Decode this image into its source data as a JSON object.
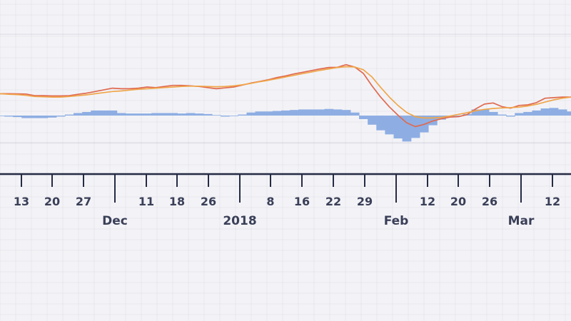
{
  "chart_data": {
    "type": "line",
    "x_labels": [
      "13",
      "20",
      "27",
      "Dec",
      "11",
      "18",
      "26",
      "2018",
      "8",
      "16",
      "22",
      "29",
      "Feb",
      "12",
      "20",
      "26",
      "Mar",
      "12"
    ],
    "colors": {
      "line1": "#e0694f",
      "line2": "#f0a64a",
      "histogram": "#8eaee3",
      "axis": "#252b45",
      "grid": "#c9c9d8",
      "background": "#f3f3f7"
    },
    "series": [
      {
        "values": [
          2.2,
          2.2,
          2.15,
          2.1,
          1.5,
          1.5,
          1.4,
          1.4,
          1.5,
          2.0,
          2.4,
          3.0,
          3.6,
          4.2,
          4.0,
          4.0,
          4.2,
          4.6,
          4.4,
          4.8,
          5.2,
          5.2,
          5.0,
          4.8,
          4.4,
          4.0,
          4.3,
          4.6,
          5.3,
          6.0,
          6.6,
          7.2,
          8.0,
          8.6,
          9.3,
          9.9,
          10.5,
          11.1,
          11.6,
          11.7,
          12.6,
          11.8,
          9.5,
          5.0,
          1.0,
          -2.5,
          -5.5,
          -8.2,
          -9.6,
          -8.8,
          -7.6,
          -6.8,
          -6.2,
          -6.0,
          -5.3,
          -3.2,
          -1.5,
          -1.1,
          -2.4,
          -3.0,
          -2.0,
          -1.8,
          -1.0,
          0.6,
          0.8,
          1.0,
          1.0
        ]
      },
      {
        "values": [
          2.2,
          2.0,
          1.9,
          1.6,
          1.2,
          1.1,
          1.0,
          1.0,
          1.2,
          1.5,
          1.8,
          2.2,
          2.6,
          3.0,
          3.2,
          3.5,
          3.8,
          4.0,
          4.2,
          4.4,
          4.6,
          4.8,
          4.9,
          4.9,
          4.8,
          4.7,
          4.8,
          5.0,
          5.4,
          5.9,
          6.5,
          7.0,
          7.6,
          8.2,
          8.8,
          9.4,
          10.0,
          10.6,
          11.1,
          11.6,
          11.9,
          11.8,
          10.8,
          8.2,
          4.5,
          1.0,
          -2.0,
          -4.5,
          -6.0,
          -6.5,
          -6.5,
          -6.3,
          -5.8,
          -5.2,
          -4.6,
          -3.9,
          -3.4,
          -3.1,
          -2.9,
          -2.8,
          -2.6,
          -2.2,
          -1.6,
          -0.8,
          0.0,
          0.6,
          1.0
        ]
      }
    ],
    "histogram": [
      0.0,
      -0.2,
      -0.3,
      -0.5,
      -0.5,
      -0.5,
      -0.4,
      -0.2,
      0.2,
      0.5,
      0.7,
      1.0,
      1.0,
      1.0,
      0.5,
      0.4,
      0.4,
      0.4,
      0.5,
      0.5,
      0.5,
      0.4,
      0.5,
      0.4,
      0.3,
      0.1,
      -0.2,
      -0.1,
      0.2,
      0.6,
      0.8,
      0.8,
      0.9,
      1.0,
      1.1,
      1.2,
      1.2,
      1.2,
      1.3,
      1.2,
      1.1,
      0.6,
      -0.7,
      -1.8,
      -2.9,
      -3.7,
      -4.5,
      -5.1,
      -4.4,
      -3.3,
      -1.9,
      -0.8,
      -0.2,
      -0.1,
      0.3,
      1.2,
      1.2,
      0.7,
      0.2,
      -0.2,
      0.5,
      0.7,
      1.0,
      1.4,
      1.5,
      1.2,
      0.8
    ],
    "ylim": [
      -14,
      14
    ],
    "grid": true,
    "legend": "none"
  }
}
